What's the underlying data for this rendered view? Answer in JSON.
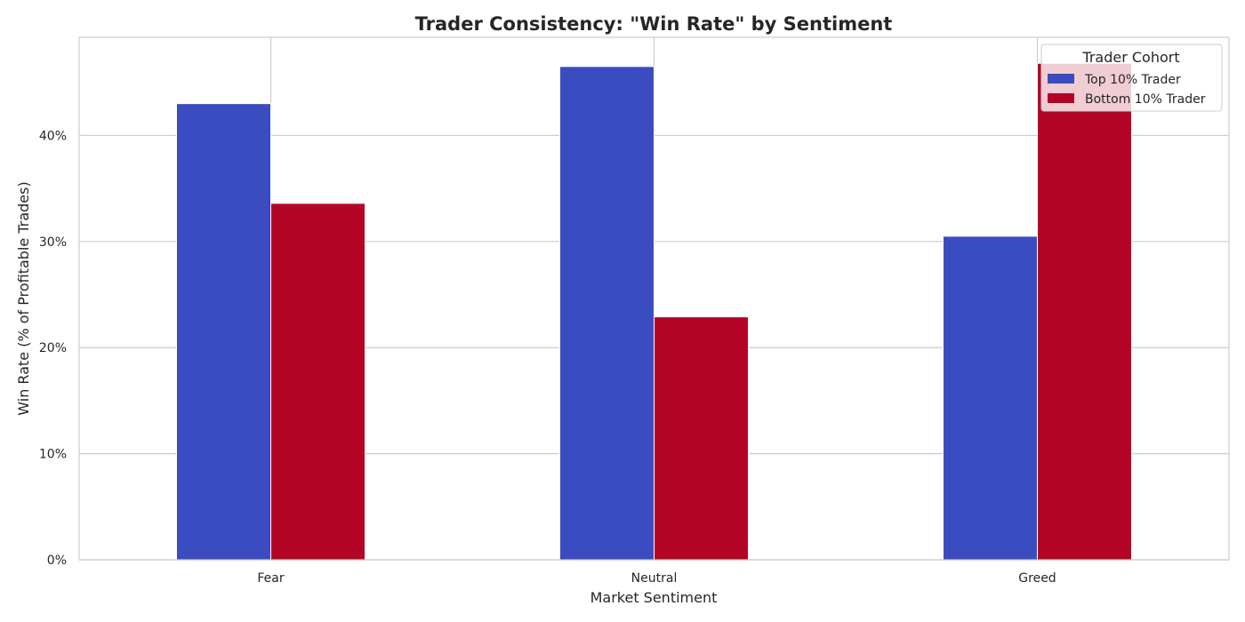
{
  "chart_data": {
    "type": "bar",
    "title": "Trader Consistency: \"Win Rate\" by Sentiment",
    "xlabel": "Market Sentiment",
    "ylabel": "Win Rate (% of Profitable Trades)",
    "categories": [
      "Fear",
      "Neutral",
      "Greed"
    ],
    "series": [
      {
        "name": "Top 10% Trader",
        "values": [
          0.43,
          0.465,
          0.305
        ],
        "color": "#3b4cc0"
      },
      {
        "name": "Bottom 10% Trader",
        "values": [
          0.336,
          0.229,
          0.468
        ],
        "color": "#b40426"
      }
    ],
    "ylim": [
      0,
      0.4925
    ],
    "yticks": [
      0,
      0.1,
      0.2,
      0.3,
      0.4
    ],
    "ytick_labels": [
      "0%",
      "10%",
      "20%",
      "30%",
      "40%"
    ],
    "grid": true,
    "legend": {
      "title": "Trader Cohort",
      "placement": "top-right"
    }
  }
}
